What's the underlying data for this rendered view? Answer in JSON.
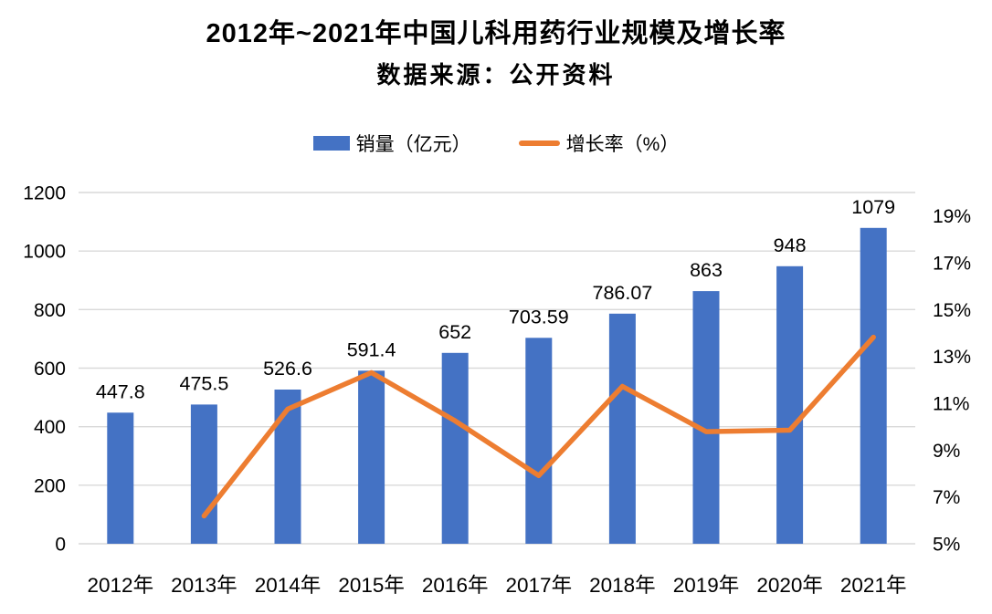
{
  "header": {
    "title": "2012年~2021年中国儿科用药行业规模及增长率",
    "subtitle": "数据来源：公开资料"
  },
  "chart_data": {
    "type": "bar+line",
    "title": "2012年~2021年中国儿科用药行业规模及增长率",
    "subtitle": "数据来源：公开资料",
    "categories": [
      "2012年",
      "2013年",
      "2014年",
      "2015年",
      "2016年",
      "2017年",
      "2018年",
      "2019年",
      "2020年",
      "2021年"
    ],
    "series": [
      {
        "name": "销量（亿元）",
        "type": "bar",
        "color": "#4472C4",
        "values": [
          447.8,
          475.5,
          526.6,
          591.4,
          652,
          703.59,
          786.07,
          863,
          948,
          1079
        ],
        "labels": [
          "447.8",
          "475.5",
          "526.6",
          "591.4",
          "652",
          "703.59",
          "786.07",
          "863",
          "948",
          "1079"
        ]
      },
      {
        "name": "增长率（%）",
        "type": "line",
        "color": "#ED7D31",
        "values": [
          null,
          6.19,
          10.75,
          12.31,
          10.25,
          7.91,
          11.72,
          9.79,
          9.85,
          13.82
        ]
      }
    ],
    "left_axis": {
      "min": 0,
      "max": 1200,
      "step": 200,
      "ticks": [
        "0",
        "200",
        "400",
        "600",
        "800",
        "1000",
        "1200"
      ]
    },
    "right_axis": {
      "min": 5,
      "max": 20,
      "step": 2,
      "ticks": [
        "5%",
        "7%",
        "9%",
        "11%",
        "13%",
        "15%",
        "17%",
        "19%"
      ]
    },
    "grid": true,
    "gridline_color": "#D9D9D9",
    "legend_position": "top"
  }
}
